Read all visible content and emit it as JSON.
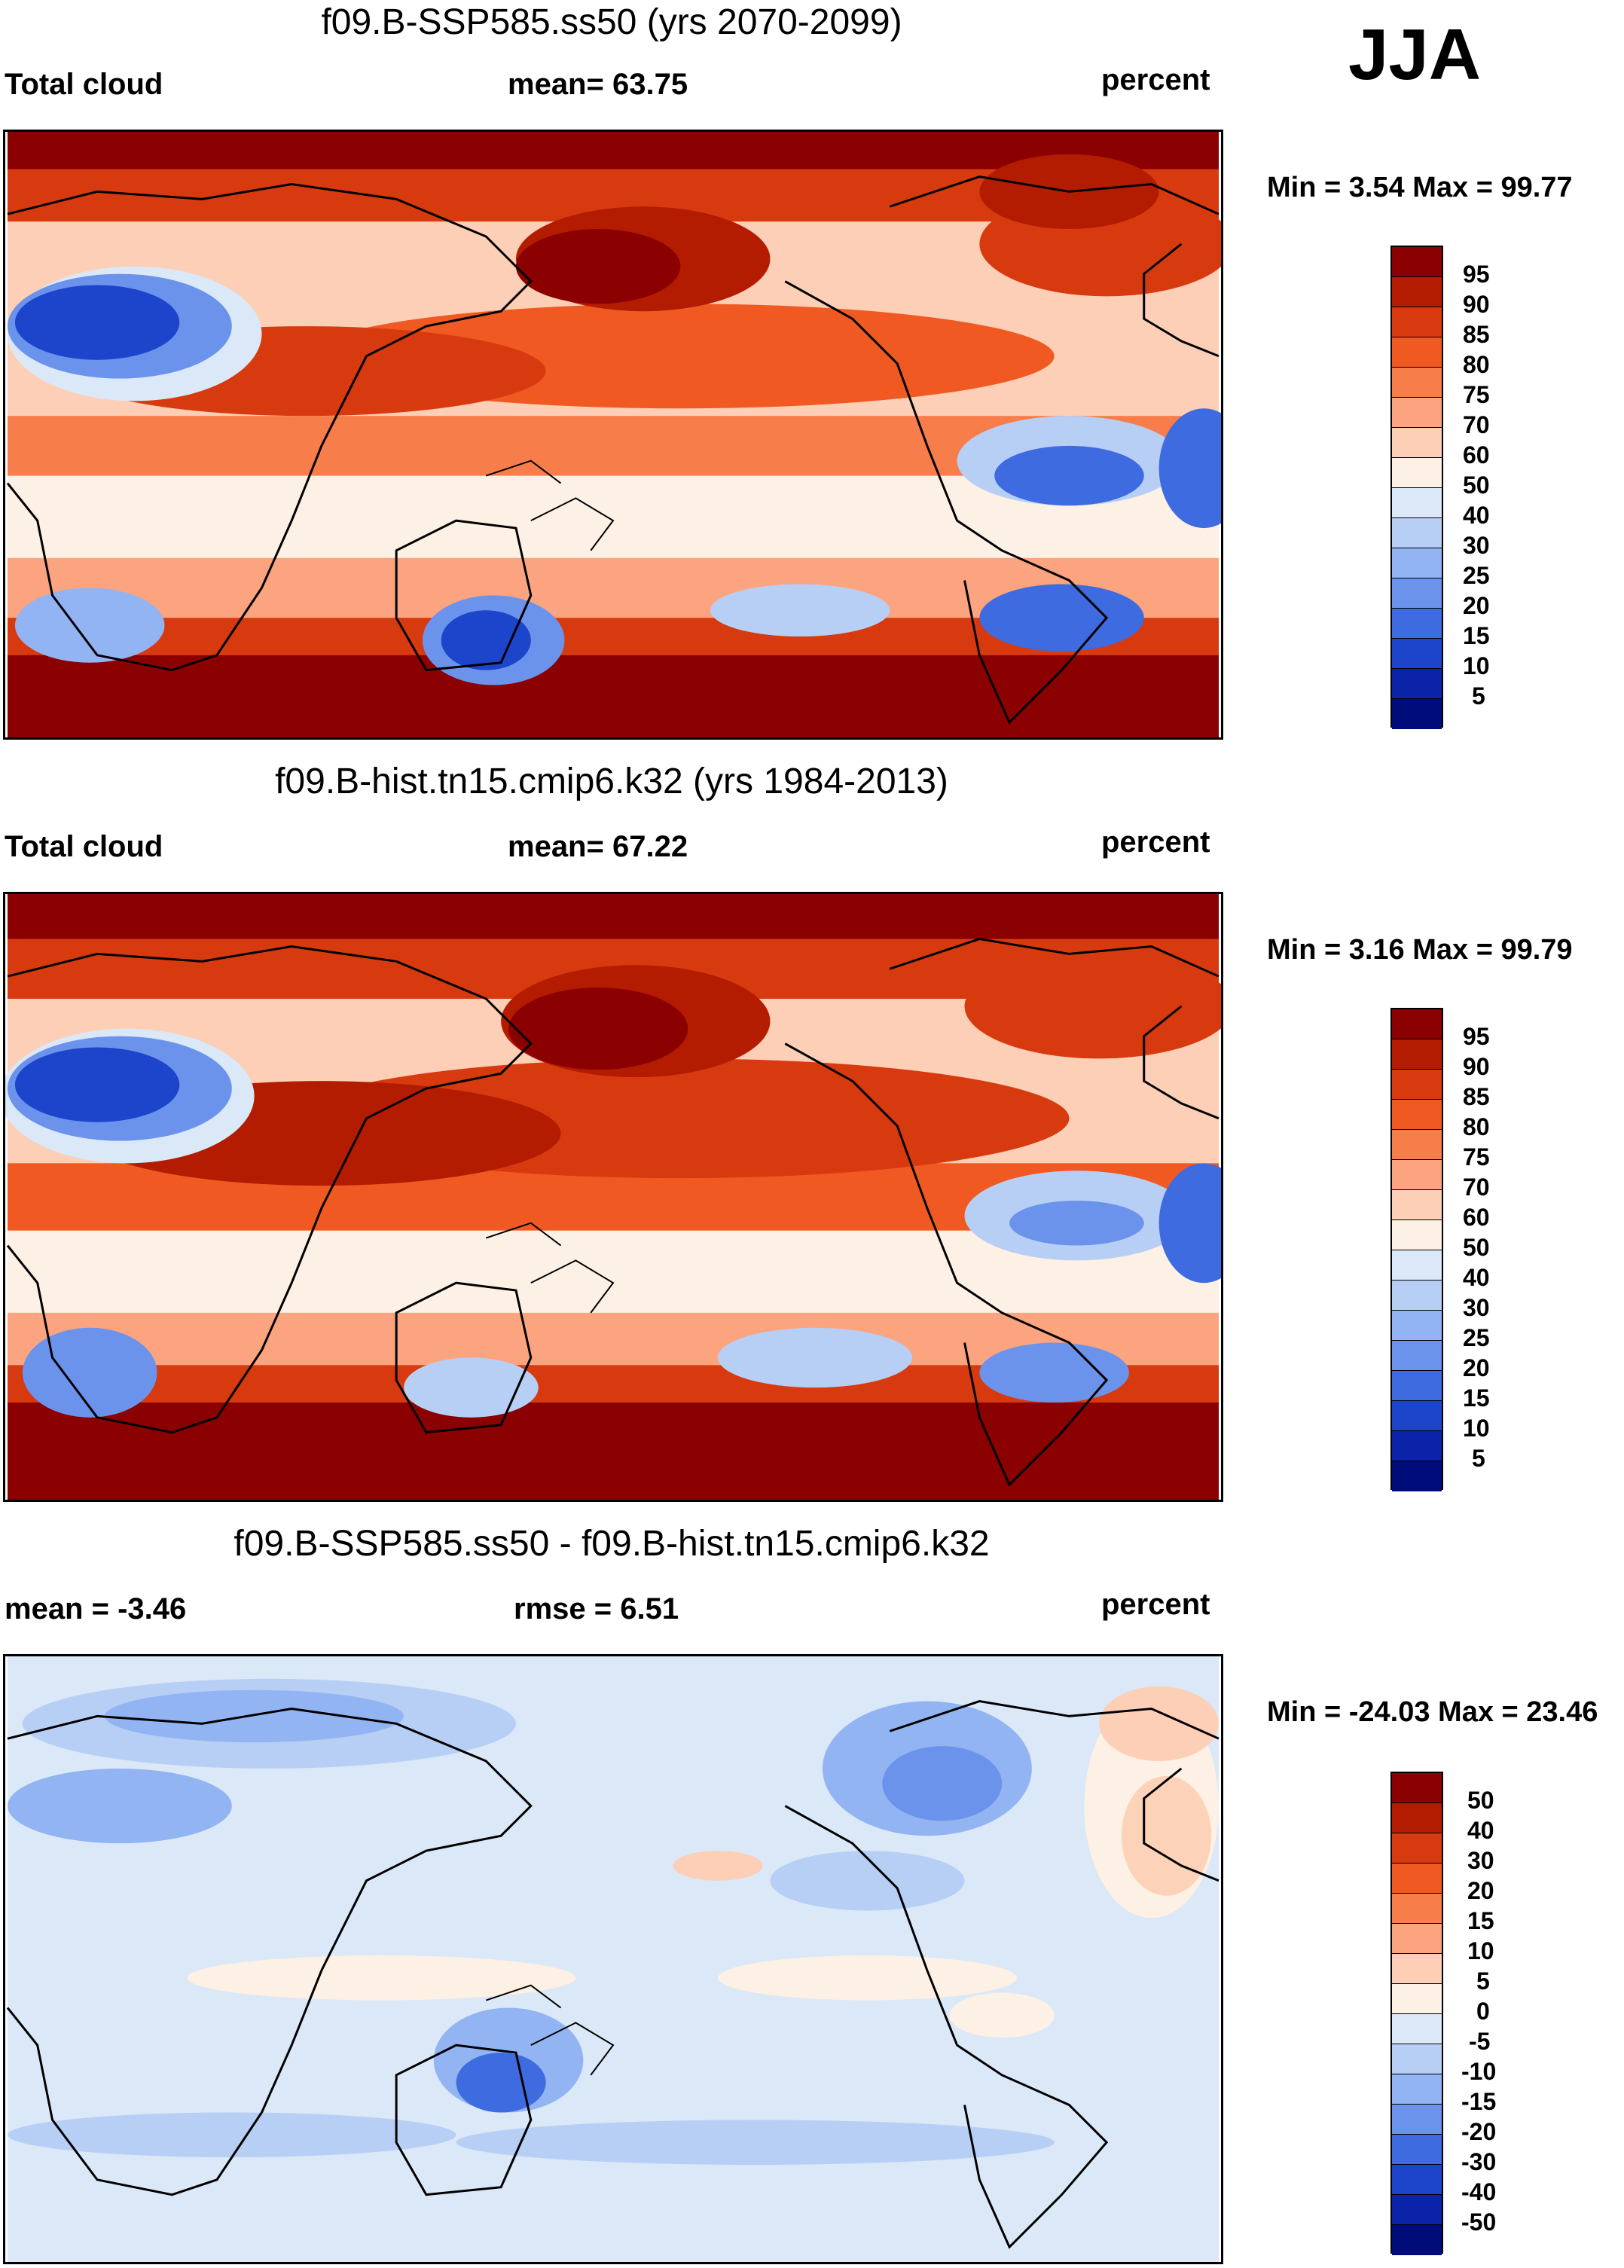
{
  "season": "JJA",
  "panels": [
    {
      "title": "f09.B-SSP585.ss50 (yrs 2070-2099)",
      "left_label": "Total cloud",
      "center_label": "mean=  63.75",
      "units": "percent",
      "min_max": "Min =   3.54 Max =  99.77",
      "colorbar_levels": [
        "95",
        "90",
        "85",
        "80",
        "75",
        "70",
        "60",
        "50",
        "40",
        "30",
        "25",
        "20",
        "15",
        "10",
        "5"
      ],
      "colorbar_colors": [
        "#8b0000",
        "#b31c00",
        "#d83a10",
        "#f05a22",
        "#f77d4b",
        "#fca47f",
        "#fdcfb6",
        "#fdf0e4",
        "#dbe8f8",
        "#b7cff5",
        "#92b4f2",
        "#6b93ec",
        "#3e6be0",
        "#1c45cb",
        "#0b23a8",
        "#000c7a"
      ],
      "chart_data": {
        "type": "heatmap",
        "title": "f09.B-SSP585.ss50 (yrs 2070-2099)",
        "variable": "Total cloud",
        "units": "percent",
        "mean": 63.75,
        "min": 3.54,
        "max": 99.77,
        "levels": [
          5,
          10,
          15,
          20,
          25,
          30,
          40,
          50,
          60,
          70,
          75,
          80,
          85,
          90,
          95
        ]
      }
    },
    {
      "title": "f09.B-hist.tn15.cmip6.k32 (yrs 1984-2013)",
      "left_label": "Total cloud",
      "center_label": "mean=  67.22",
      "units": "percent",
      "min_max": "Min =   3.16 Max =  99.79",
      "colorbar_levels": [
        "95",
        "90",
        "85",
        "80",
        "75",
        "70",
        "60",
        "50",
        "40",
        "30",
        "25",
        "20",
        "15",
        "10",
        "5"
      ],
      "colorbar_colors": [
        "#8b0000",
        "#b31c00",
        "#d83a10",
        "#f05a22",
        "#f77d4b",
        "#fca47f",
        "#fdcfb6",
        "#fdf0e4",
        "#dbe8f8",
        "#b7cff5",
        "#92b4f2",
        "#6b93ec",
        "#3e6be0",
        "#1c45cb",
        "#0b23a8",
        "#000c7a"
      ],
      "chart_data": {
        "type": "heatmap",
        "title": "f09.B-hist.tn15.cmip6.k32 (yrs 1984-2013)",
        "variable": "Total cloud",
        "units": "percent",
        "mean": 67.22,
        "min": 3.16,
        "max": 99.79,
        "levels": [
          5,
          10,
          15,
          20,
          25,
          30,
          40,
          50,
          60,
          70,
          75,
          80,
          85,
          90,
          95
        ]
      }
    },
    {
      "title": "f09.B-SSP585.ss50 - f09.B-hist.tn15.cmip6.k32",
      "left_label": "mean =  -3.46",
      "center_label": "rmse =    6.51",
      "units": "percent",
      "min_max": "Min = -24.03 Max =  23.46",
      "colorbar_levels": [
        "50",
        "40",
        "30",
        "20",
        "15",
        "10",
        "5",
        "0",
        "-5",
        "-10",
        "-15",
        "-20",
        "-30",
        "-40",
        "-50"
      ],
      "colorbar_colors": [
        "#8b0000",
        "#b31c00",
        "#d83a10",
        "#f05a22",
        "#f77d4b",
        "#fca47f",
        "#fdcfb6",
        "#fdf0e4",
        "#dbe8f8",
        "#b7cff5",
        "#92b4f2",
        "#6b93ec",
        "#3e6be0",
        "#1c45cb",
        "#0b23a8",
        "#000c7a"
      ],
      "chart_data": {
        "type": "heatmap",
        "title": "f09.B-SSP585.ss50 - f09.B-hist.tn15.cmip6.k32",
        "variable": "Total cloud difference",
        "units": "percent",
        "mean": -3.46,
        "rmse": 6.51,
        "min": -24.03,
        "max": 23.46,
        "levels": [
          -50,
          -40,
          -30,
          -20,
          -15,
          -10,
          -5,
          0,
          5,
          10,
          15,
          20,
          30,
          40,
          50
        ]
      }
    }
  ]
}
